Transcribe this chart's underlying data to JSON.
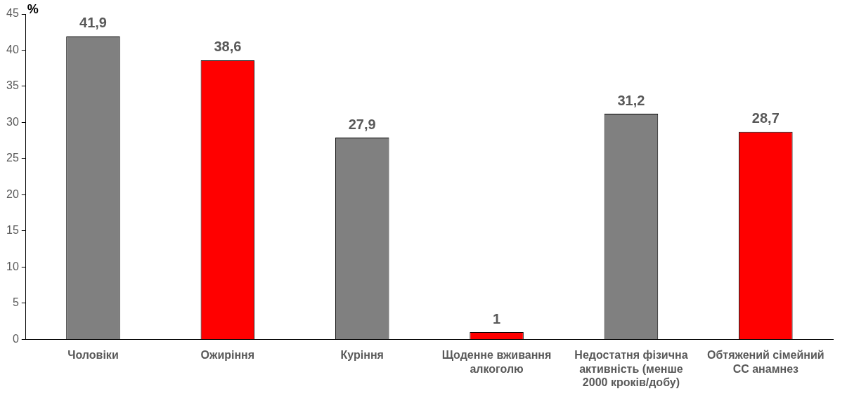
{
  "chart_data": {
    "type": "bar",
    "ylabel": "%",
    "categories": [
      "Чоловіки",
      "Ожиріння",
      "Куріння",
      "Щоденне вживання алкоголю",
      "Недостатня фізична активність (менше 2000 кроків/добу)",
      "Обтяжений сімейний СС анамнез"
    ],
    "values": [
      41.9,
      38.6,
      27.9,
      1,
      31.2,
      28.7
    ],
    "colors": [
      "#808080",
      "#ff0000",
      "#808080",
      "#ff0000",
      "#808080",
      "#ff0000"
    ],
    "ylim": [
      0,
      45
    ],
    "yticks": [
      0,
      5,
      10,
      15,
      20,
      25,
      30,
      35,
      40,
      45
    ],
    "value_labels": [
      "41,9",
      "38,6",
      "27,9",
      "1",
      "31,2",
      "28,7"
    ],
    "grid": false,
    "legend": false
  }
}
